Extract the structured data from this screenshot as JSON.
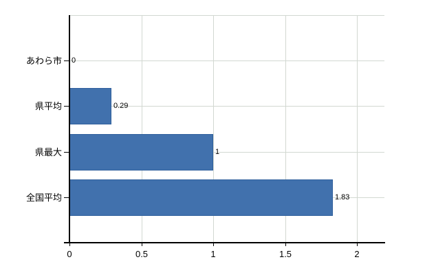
{
  "chart_data": {
    "type": "bar",
    "orientation": "horizontal",
    "title": "",
    "xlabel": "",
    "ylabel": "",
    "categories": [
      "あわら市",
      "県平均",
      "県最大",
      "全国平均"
    ],
    "values": [
      0,
      0.29,
      1,
      1.83
    ],
    "value_labels": [
      "0",
      "0.29",
      "1",
      "1.83"
    ],
    "x_ticks": [
      0,
      0.5,
      1,
      1.5,
      2
    ],
    "x_tick_labels": [
      "0",
      "0.5",
      "1",
      "1.5",
      "2"
    ],
    "xlim": [
      0,
      2.19
    ],
    "grid": true,
    "legend": null,
    "colors": {
      "bar_fill": "#4171ad",
      "bar_border": "#2f5f9c",
      "grid": "#d2d8d1",
      "axis": "#000000",
      "text": "#000000",
      "background": "#ffffff"
    }
  }
}
